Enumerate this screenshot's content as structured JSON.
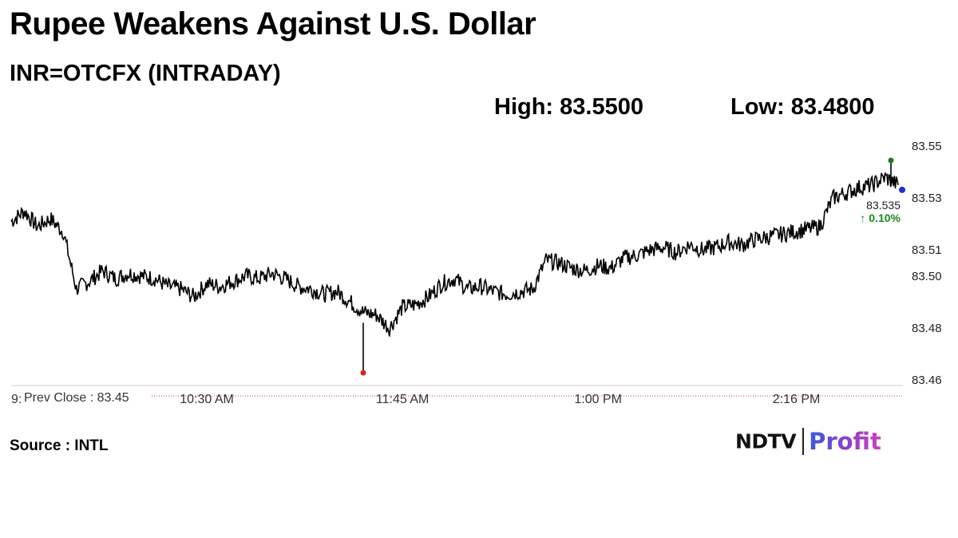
{
  "header": {
    "title": "Rupee Weakens Against U.S. Dollar",
    "subtitle": "INR=OTCFX (INTRADAY)",
    "high_label": "High: 83.5500",
    "low_label": "Low: 83.4800"
  },
  "footer": {
    "source": "Source : INTL",
    "logo_left": "NDTV",
    "logo_right": "Profit"
  },
  "chart_data": {
    "type": "line",
    "title": "Rupee Weakens Against U.S. Dollar",
    "subtitle": "INR=OTCFX (INTRADAY)",
    "xlabel": "",
    "ylabel": "",
    "ylim": [
      83.46,
      83.55
    ],
    "y_ticks": [
      "83.55",
      "83.53",
      "83.51",
      "83.50",
      "83.48",
      "83.46"
    ],
    "x_ticks": [
      {
        "label": "9:",
        "x": "9:15"
      },
      {
        "label": "10:30 AM",
        "x": "10:30"
      },
      {
        "label": "11:45 AM",
        "x": "11:45"
      },
      {
        "label": "1:00 PM",
        "x": "13:00"
      },
      {
        "label": "2:16 PM",
        "x": "14:16"
      }
    ],
    "prev_close": {
      "label": "Prev Close : 83.45",
      "value": 83.45
    },
    "last": {
      "value_label": "83.535",
      "change_label": "↑ 0.10%",
      "value": 83.535
    },
    "high": 83.55,
    "low": 83.48,
    "colors": {
      "line": "#000000",
      "high_marker": "#1a7f1a",
      "low_marker": "#e02020",
      "last_marker": "#1f2fd6",
      "change_text": "#1a8a1a",
      "prev_close_line": "#d04040",
      "axis": "#cccccc"
    },
    "series": [
      {
        "points": [
          [
            "9:15",
            83.521
          ],
          [
            "9:20",
            83.525
          ],
          [
            "9:25",
            83.519
          ],
          [
            "9:30",
            83.522
          ],
          [
            "9:35",
            83.517
          ],
          [
            "9:40",
            83.495
          ],
          [
            "9:45",
            83.498
          ],
          [
            "9:50",
            83.502
          ],
          [
            "9:55",
            83.499
          ],
          [
            "10:00",
            83.501
          ],
          [
            "10:05",
            83.5
          ],
          [
            "10:10",
            83.499
          ],
          [
            "10:15",
            83.496
          ],
          [
            "10:20",
            83.495
          ],
          [
            "10:25",
            83.492
          ],
          [
            "10:30",
            83.497
          ],
          [
            "10:35",
            83.496
          ],
          [
            "10:40",
            83.498
          ],
          [
            "10:45",
            83.5
          ],
          [
            "10:50",
            83.499
          ],
          [
            "10:55",
            83.501
          ],
          [
            "11:00",
            83.499
          ],
          [
            "11:05",
            83.496
          ],
          [
            "11:10",
            83.495
          ],
          [
            "11:15",
            83.493
          ],
          [
            "11:20",
            83.494
          ],
          [
            "11:25",
            83.49
          ],
          [
            "11:30",
            83.486
          ],
          [
            "11:35",
            83.485
          ],
          [
            "11:40",
            83.48
          ],
          [
            "11:45",
            83.488
          ],
          [
            "11:50",
            83.489
          ],
          [
            "11:55",
            83.492
          ],
          [
            "12:00",
            83.497
          ],
          [
            "12:05",
            83.499
          ],
          [
            "12:10",
            83.495
          ],
          [
            "12:15",
            83.496
          ],
          [
            "12:20",
            83.494
          ],
          [
            "12:25",
            83.493
          ],
          [
            "12:30",
            83.494
          ],
          [
            "12:35",
            83.495
          ],
          [
            "12:40",
            83.506
          ],
          [
            "12:45",
            83.505
          ],
          [
            "12:50",
            83.503
          ],
          [
            "12:55",
            83.502
          ],
          [
            "13:00",
            83.504
          ],
          [
            "13:05",
            83.503
          ],
          [
            "13:10",
            83.507
          ],
          [
            "13:15",
            83.508
          ],
          [
            "13:20",
            83.51
          ],
          [
            "13:25",
            83.511
          ],
          [
            "13:30",
            83.509
          ],
          [
            "13:35",
            83.512
          ],
          [
            "13:40",
            83.51
          ],
          [
            "13:45",
            83.511
          ],
          [
            "13:50",
            83.513
          ],
          [
            "13:55",
            83.512
          ],
          [
            "14:00",
            83.514
          ],
          [
            "14:05",
            83.515
          ],
          [
            "14:10",
            83.516
          ],
          [
            "14:15",
            83.517
          ],
          [
            "14:20",
            83.518
          ],
          [
            "14:25",
            83.519
          ],
          [
            "14:30",
            83.53
          ],
          [
            "14:35",
            83.532
          ],
          [
            "14:40",
            83.534
          ],
          [
            "14:45",
            83.535
          ],
          [
            "14:50",
            83.538
          ],
          [
            "14:55",
            83.535
          ]
        ]
      }
    ]
  }
}
